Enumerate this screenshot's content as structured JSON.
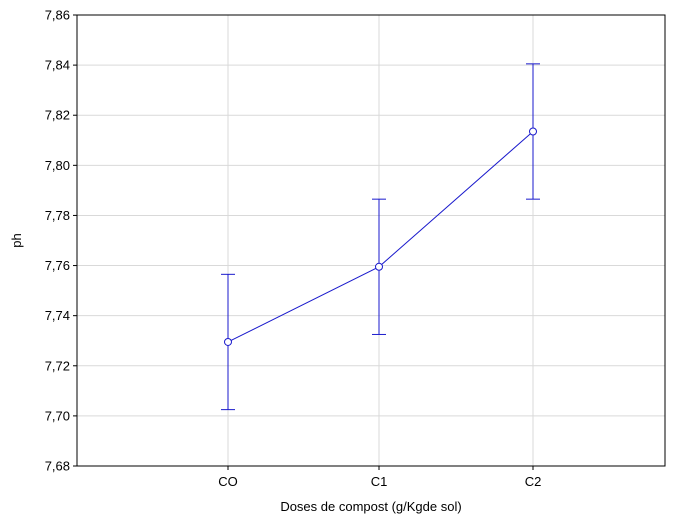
{
  "chart_data": {
    "type": "line",
    "title": "",
    "xlabel": "Doses de compost (g/Kgde sol)",
    "ylabel": "ph",
    "categories": [
      "CO",
      "C1",
      "C2"
    ],
    "series": [
      {
        "values": [
          7.7295,
          7.7595,
          7.8135
        ],
        "error_low": [
          7.7025,
          7.7325,
          7.7865
        ],
        "error_high": [
          7.7565,
          7.7865,
          7.8405
        ]
      }
    ],
    "ylim": [
      7.68,
      7.86
    ],
    "yticks": [
      "7,68",
      "7,70",
      "7,72",
      "7,74",
      "7,76",
      "7,78",
      "7,80",
      "7,82",
      "7,84",
      "7,86"
    ],
    "grid": true,
    "colors": {
      "series": "#1a1acc",
      "grid": "#d9d9d9",
      "axis": "#000000"
    }
  }
}
